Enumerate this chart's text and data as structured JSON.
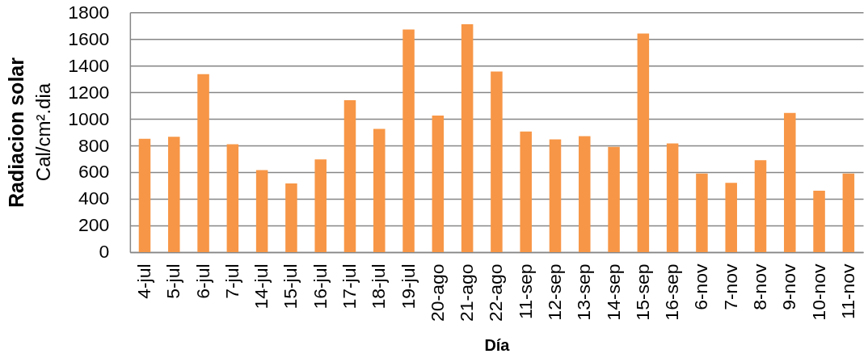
{
  "chart_data": {
    "type": "bar",
    "categories": [
      "4-jul",
      "5-jul",
      "6-jul",
      "7-jul",
      "14-jul",
      "15-jul",
      "16-jul",
      "17-jul",
      "18-jul",
      "19-jul",
      "20-ago",
      "21-ago",
      "22-ago",
      "11-sep",
      "12-sep",
      "13-sep",
      "14-sep",
      "15-sep",
      "16-sep",
      "6-nov",
      "7-nov",
      "8-nov",
      "9-nov",
      "10-nov",
      "11-nov"
    ],
    "values": [
      850,
      865,
      1335,
      810,
      615,
      515,
      695,
      1140,
      925,
      1670,
      1025,
      1710,
      1355,
      905,
      845,
      870,
      790,
      1640,
      815,
      590,
      520,
      690,
      1045,
      460,
      590
    ],
    "color": "#f79646",
    "xlabel": "Día",
    "ylabel": "Radiacion  solar\nCal/cm².dia",
    "ylim": [
      0,
      1800
    ],
    "yticks": [
      0,
      200,
      400,
      600,
      800,
      1000,
      1200,
      1400,
      1600,
      1800
    ],
    "grid": "y"
  }
}
